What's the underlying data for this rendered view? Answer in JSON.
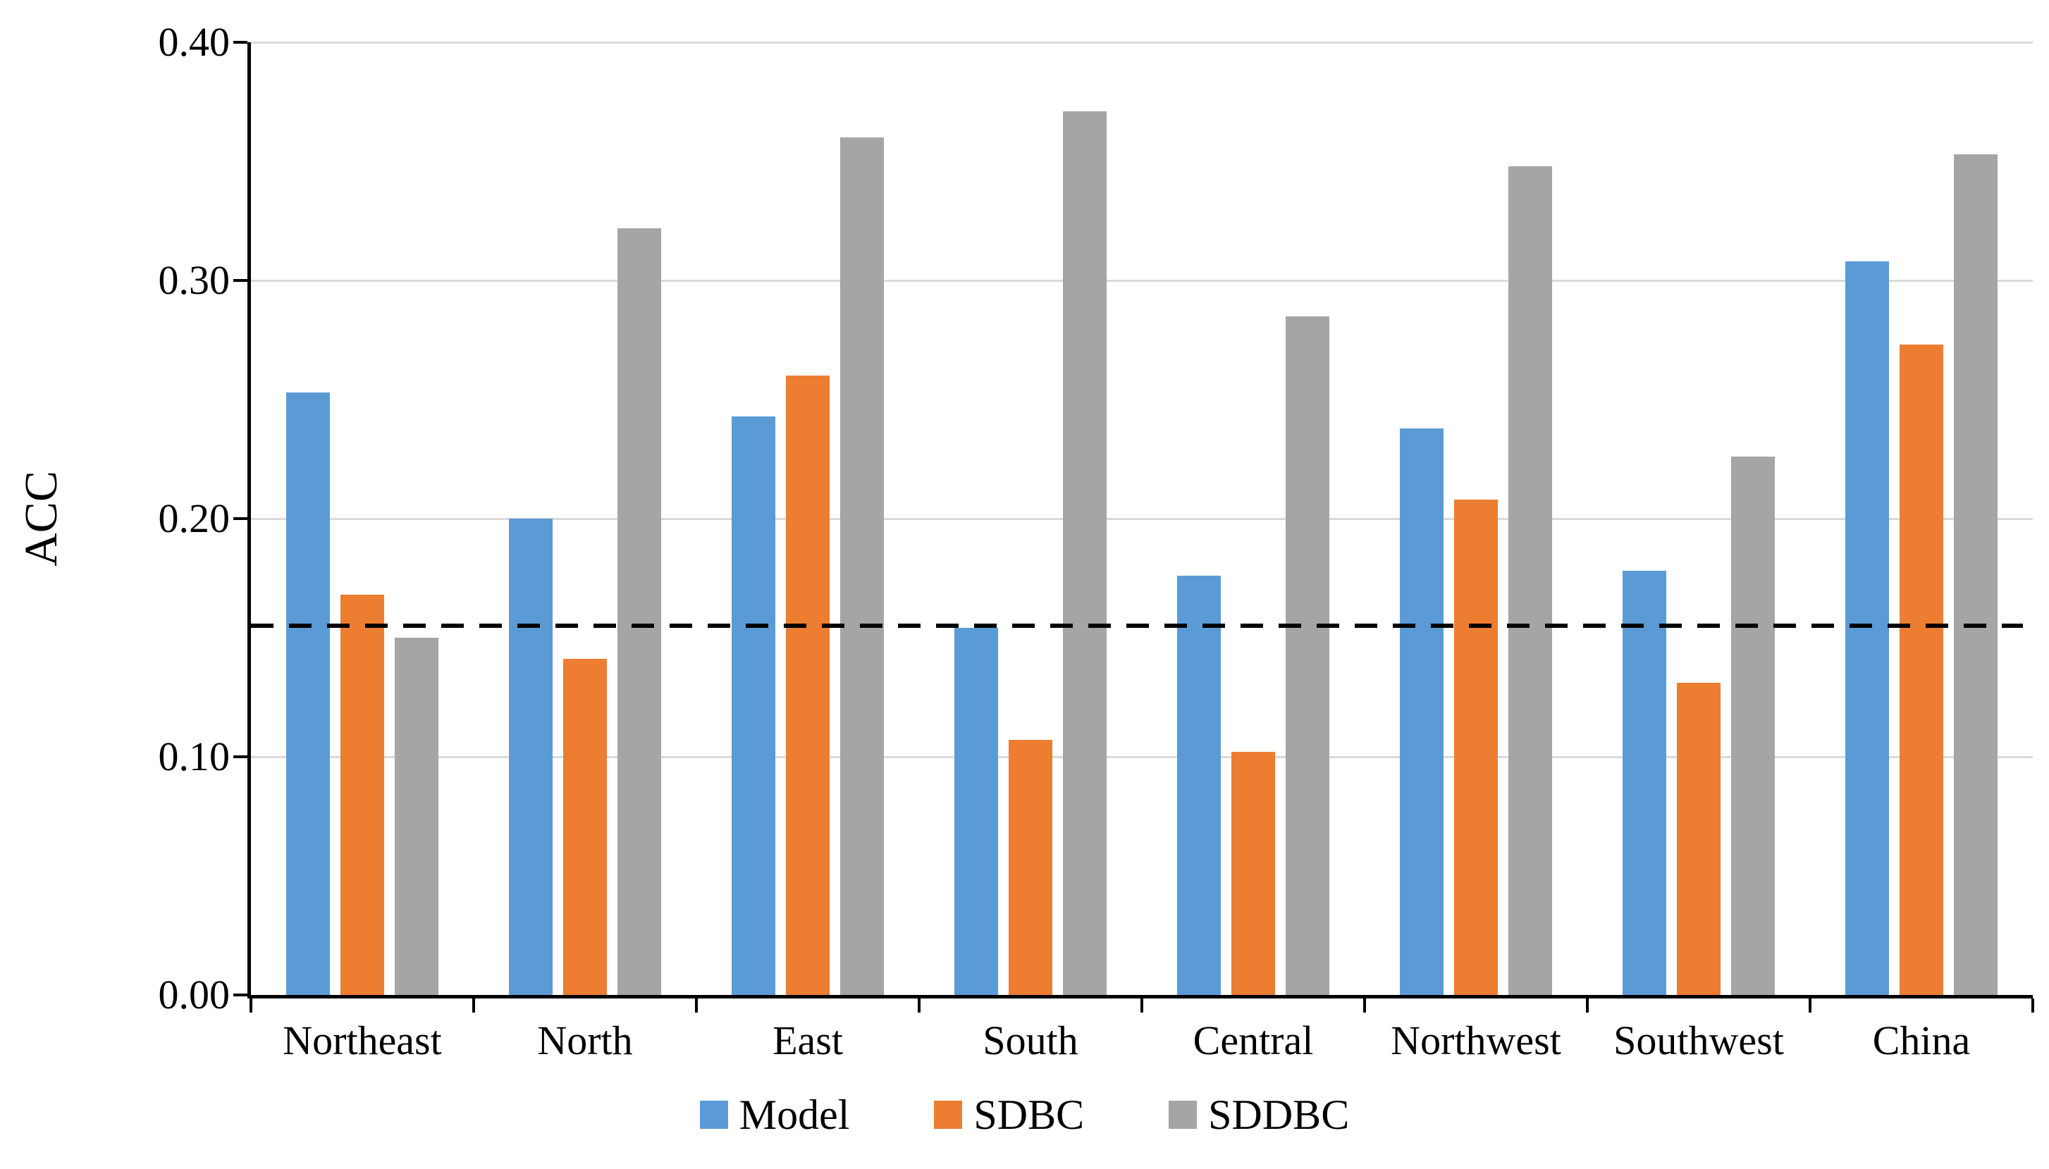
{
  "chart_data": {
    "type": "bar",
    "title": "",
    "xlabel": "",
    "ylabel": "ACC",
    "ylim": [
      0,
      0.4
    ],
    "yticks": [
      0.0,
      0.1,
      0.2,
      0.3,
      0.4
    ],
    "ytick_labels": [
      "0.00",
      "0.10",
      "0.20",
      "0.30",
      "0.40"
    ],
    "categories": [
      "Northeast",
      "North",
      "East",
      "South",
      "Central",
      "Northwest",
      "Southwest",
      "China"
    ],
    "series": [
      {
        "name": "Model",
        "color": "#5B9BD5",
        "values": [
          0.253,
          0.2,
          0.243,
          0.154,
          0.176,
          0.238,
          0.178,
          0.308
        ]
      },
      {
        "name": "SDBC",
        "color": "#ED7D31",
        "values": [
          0.168,
          0.141,
          0.26,
          0.107,
          0.102,
          0.208,
          0.131,
          0.273
        ]
      },
      {
        "name": "SDDBC",
        "color": "#A5A5A5",
        "values": [
          0.15,
          0.322,
          0.36,
          0.371,
          0.285,
          0.348,
          0.226,
          0.353
        ]
      }
    ],
    "reference_line": {
      "value": 0.155,
      "style": "dashed",
      "color": "#000000"
    },
    "legend_position": "bottom",
    "grid": true,
    "gridline_color": "#D9D9D9",
    "axis_color": "#000000"
  }
}
